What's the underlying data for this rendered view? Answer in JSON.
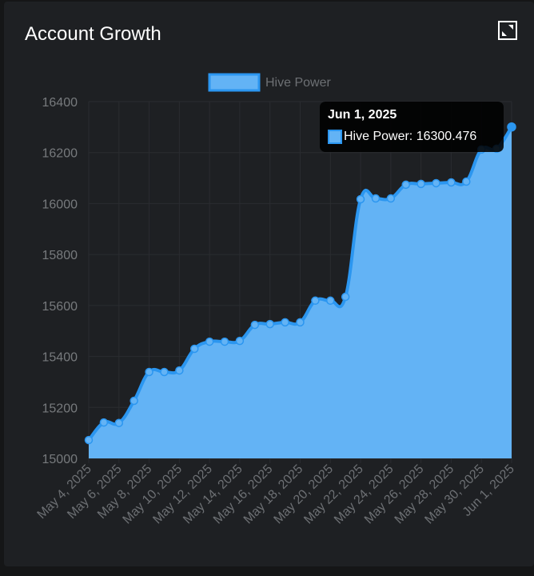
{
  "card": {
    "title": "Account Growth",
    "expand_icon": "expand-icon"
  },
  "legend": {
    "label": "Hive Power",
    "swatch_fill": "#63b3f5",
    "swatch_border": "#2b96f0"
  },
  "tooltip": {
    "title": "Jun 1, 2025",
    "body": "Hive Power: 16300.476"
  },
  "colors": {
    "background": "#1e2023",
    "line": "#2b96f0",
    "fill": "#63b3f5",
    "grid": "#2a2c30",
    "tick_text": "#777a7d"
  },
  "chart_data": {
    "type": "area",
    "title": "Account Growth",
    "xlabel": "",
    "ylabel": "",
    "ylim": [
      15000,
      16400
    ],
    "yticks": [
      15000,
      15200,
      15400,
      15600,
      15800,
      16000,
      16200,
      16400
    ],
    "x_tick_labels": [
      "May 4, 2025",
      "May 6, 2025",
      "May 8, 2025",
      "May 10, 2025",
      "May 12, 2025",
      "May 14, 2025",
      "May 16, 2025",
      "May 18, 2025",
      "May 20, 2025",
      "May 22, 2025",
      "May 24, 2025",
      "May 26, 2025",
      "May 28, 2025",
      "May 30, 2025",
      "Jun 1, 2025"
    ],
    "legend_position": "top",
    "grid": true,
    "x": [
      "May 4, 2025",
      "May 5, 2025",
      "May 6, 2025",
      "May 7, 2025",
      "May 8, 2025",
      "May 9, 2025",
      "May 10, 2025",
      "May 11, 2025",
      "May 12, 2025",
      "May 13, 2025",
      "May 14, 2025",
      "May 15, 2025",
      "May 16, 2025",
      "May 17, 2025",
      "May 18, 2025",
      "May 19, 2025",
      "May 20, 2025",
      "May 21, 2025",
      "May 22, 2025",
      "May 23, 2025",
      "May 24, 2025",
      "May 25, 2025",
      "May 26, 2025",
      "May 27, 2025",
      "May 28, 2025",
      "May 29, 2025",
      "May 30, 2025",
      "May 31, 2025",
      "Jun 1, 2025"
    ],
    "series": [
      {
        "name": "Hive Power",
        "values": [
          15072,
          15141,
          15139,
          15226,
          15339,
          15339,
          15345,
          15430,
          15458,
          15458,
          15461,
          15524,
          15527,
          15534,
          15534,
          15619,
          15619,
          15634,
          16017,
          16020,
          16020,
          16074,
          16077,
          16080,
          16083,
          16086,
          16212,
          16215,
          16300.476
        ]
      }
    ]
  }
}
